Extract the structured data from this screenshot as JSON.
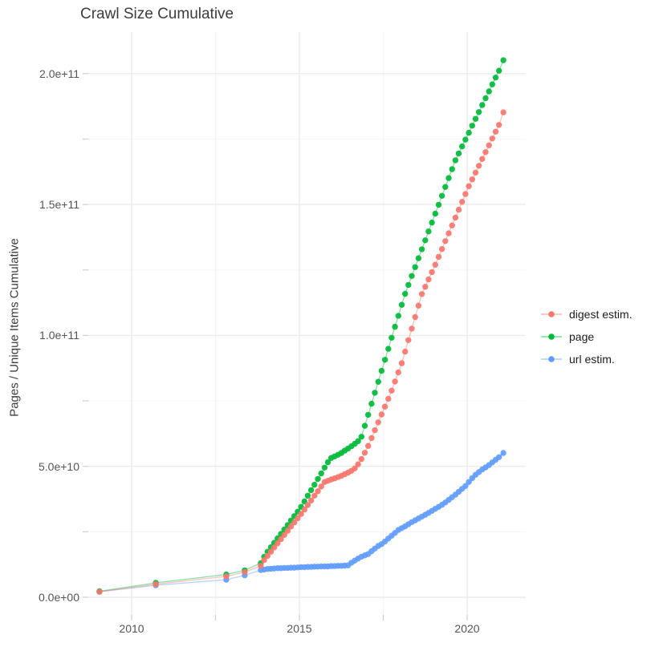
{
  "chart_data": {
    "type": "scatter",
    "title": "Crawl Size Cumulative",
    "xlabel": "",
    "ylabel": "Pages / Unique Items Cumulative",
    "value_unit": "pages, billions (1e9)",
    "xlim": [
      2008.7,
      2021.75
    ],
    "ylim_billions": [
      0,
      215
    ],
    "grid": true,
    "legend_position": "right",
    "x_ticks": [
      {
        "value": 2010,
        "label": "2010"
      },
      {
        "value": 2015,
        "label": "2015"
      },
      {
        "value": 2020,
        "label": "2020"
      }
    ],
    "x_minor_ticks": [
      2012.5,
      2017.5
    ],
    "y_ticks": [
      {
        "value": 0,
        "label": "0.0e+00"
      },
      {
        "value": 50,
        "label": "5.0e+10"
      },
      {
        "value": 100,
        "label": "1.0e+11"
      },
      {
        "value": 150,
        "label": "1.5e+11"
      },
      {
        "value": 200,
        "label": "2.0e+11"
      }
    ],
    "y_minor_ticks": [
      25,
      75,
      125,
      175
    ],
    "colors": {
      "digest": "#F8766D",
      "page": "#00BA38",
      "url": "#619CFF",
      "grid_major": "#ebebeb",
      "grid_minor": "#f5f5f5",
      "tick": "#cfcfcf",
      "tick_text": "#555555",
      "title_text": "#3c3c3c"
    },
    "series": [
      {
        "name": "digest estim.",
        "color": "#F8766D",
        "points": [
          [
            2009.04,
            2.1
          ],
          [
            2010.72,
            5.0
          ],
          [
            2012.82,
            8.0
          ],
          [
            2013.37,
            9.6
          ],
          [
            2013.85,
            12.0
          ],
          [
            2013.95,
            14.2
          ],
          [
            2014.05,
            15.8
          ],
          [
            2014.15,
            17.4
          ],
          [
            2014.25,
            19.0
          ],
          [
            2014.35,
            20.6
          ],
          [
            2014.45,
            22.2
          ],
          [
            2014.55,
            23.8
          ],
          [
            2014.65,
            25.4
          ],
          [
            2014.75,
            27.0
          ],
          [
            2014.85,
            28.6
          ],
          [
            2014.95,
            30.2
          ],
          [
            2015.05,
            31.8
          ],
          [
            2015.15,
            33.5
          ],
          [
            2015.25,
            35.2
          ],
          [
            2015.35,
            37.0
          ],
          [
            2015.45,
            38.8
          ],
          [
            2015.55,
            40.5
          ],
          [
            2015.65,
            42.3
          ],
          [
            2015.75,
            44.0
          ],
          [
            2015.85,
            44.5
          ],
          [
            2015.95,
            45.0
          ],
          [
            2016.05,
            45.4
          ],
          [
            2016.15,
            45.9
          ],
          [
            2016.25,
            46.4
          ],
          [
            2016.35,
            47.0
          ],
          [
            2016.45,
            47.6
          ],
          [
            2016.55,
            48.3
          ],
          [
            2016.65,
            49.2
          ],
          [
            2016.75,
            50.8
          ],
          [
            2016.85,
            52.8
          ],
          [
            2016.95,
            55.2
          ],
          [
            2017.05,
            57.8
          ],
          [
            2017.15,
            60.8
          ],
          [
            2017.25,
            63.8
          ],
          [
            2017.35,
            66.8
          ],
          [
            2017.45,
            69.8
          ],
          [
            2017.55,
            72.8
          ],
          [
            2017.65,
            75.8
          ],
          [
            2017.75,
            78.9
          ],
          [
            2017.85,
            82.4
          ],
          [
            2017.95,
            85.9
          ],
          [
            2018.05,
            89.4
          ],
          [
            2018.15,
            93.8
          ],
          [
            2018.25,
            98.2
          ],
          [
            2018.35,
            102.6
          ],
          [
            2018.45,
            107.0
          ],
          [
            2018.55,
            111.4
          ],
          [
            2018.65,
            115.8
          ],
          [
            2018.75,
            118.6
          ],
          [
            2018.85,
            121.4
          ],
          [
            2018.95,
            124.2
          ],
          [
            2019.05,
            127.0
          ],
          [
            2019.15,
            130.0
          ],
          [
            2019.25,
            133.0
          ],
          [
            2019.35,
            136.0
          ],
          [
            2019.45,
            139.0
          ],
          [
            2019.55,
            142.0
          ],
          [
            2019.65,
            145.0
          ],
          [
            2019.75,
            148.0
          ],
          [
            2019.85,
            151.0
          ],
          [
            2019.95,
            154.0
          ],
          [
            2020.05,
            157.0
          ],
          [
            2020.15,
            159.6
          ],
          [
            2020.25,
            162.2
          ],
          [
            2020.35,
            164.8
          ],
          [
            2020.45,
            167.4
          ],
          [
            2020.55,
            170.0
          ],
          [
            2020.65,
            172.6
          ],
          [
            2020.75,
            175.2
          ],
          [
            2020.85,
            177.8
          ],
          [
            2020.95,
            180.4
          ],
          [
            2021.08,
            185.2
          ]
        ]
      },
      {
        "name": "page",
        "color": "#00BA38",
        "points": [
          [
            2009.04,
            2.3
          ],
          [
            2010.72,
            5.5
          ],
          [
            2012.82,
            8.7
          ],
          [
            2013.37,
            10.3
          ],
          [
            2013.85,
            13.0
          ],
          [
            2013.95,
            15.5
          ],
          [
            2014.05,
            17.4
          ],
          [
            2014.15,
            19.1
          ],
          [
            2014.25,
            20.8
          ],
          [
            2014.35,
            22.5
          ],
          [
            2014.45,
            24.2
          ],
          [
            2014.55,
            25.9
          ],
          [
            2014.65,
            27.6
          ],
          [
            2014.75,
            29.3
          ],
          [
            2014.85,
            31.0
          ],
          [
            2014.95,
            32.7
          ],
          [
            2015.05,
            34.5
          ],
          [
            2015.15,
            36.6
          ],
          [
            2015.25,
            38.8
          ],
          [
            2015.35,
            40.9
          ],
          [
            2015.45,
            43.0
          ],
          [
            2015.55,
            45.2
          ],
          [
            2015.65,
            47.3
          ],
          [
            2015.75,
            49.5
          ],
          [
            2015.85,
            51.6
          ],
          [
            2015.95,
            53.2
          ],
          [
            2016.05,
            53.8
          ],
          [
            2016.15,
            54.4
          ],
          [
            2016.25,
            55.1
          ],
          [
            2016.35,
            56.0
          ],
          [
            2016.45,
            56.8
          ],
          [
            2016.55,
            57.7
          ],
          [
            2016.65,
            58.6
          ],
          [
            2016.75,
            59.6
          ],
          [
            2016.85,
            61.3
          ],
          [
            2016.95,
            65.5
          ],
          [
            2017.05,
            69.7
          ],
          [
            2017.15,
            73.9
          ],
          [
            2017.25,
            78.1
          ],
          [
            2017.35,
            82.3
          ],
          [
            2017.45,
            86.5
          ],
          [
            2017.55,
            90.7
          ],
          [
            2017.65,
            94.9
          ],
          [
            2017.75,
            99.1
          ],
          [
            2017.85,
            103.3
          ],
          [
            2017.95,
            107.5
          ],
          [
            2018.05,
            111.7
          ],
          [
            2018.15,
            115.9
          ],
          [
            2018.25,
            119.3
          ],
          [
            2018.35,
            122.7
          ],
          [
            2018.45,
            126.1
          ],
          [
            2018.55,
            129.5
          ],
          [
            2018.65,
            132.9
          ],
          [
            2018.75,
            136.3
          ],
          [
            2018.85,
            139.7
          ],
          [
            2018.95,
            143.1
          ],
          [
            2019.05,
            146.5
          ],
          [
            2019.15,
            149.9
          ],
          [
            2019.25,
            153.3
          ],
          [
            2019.35,
            156.7
          ],
          [
            2019.45,
            160.1
          ],
          [
            2019.55,
            163.5
          ],
          [
            2019.65,
            166.9
          ],
          [
            2019.75,
            169.5
          ],
          [
            2019.85,
            172.2
          ],
          [
            2019.95,
            174.8
          ],
          [
            2020.05,
            177.4
          ],
          [
            2020.15,
            180.1
          ],
          [
            2020.25,
            182.7
          ],
          [
            2020.35,
            185.3
          ],
          [
            2020.45,
            188.0
          ],
          [
            2020.55,
            190.6
          ],
          [
            2020.65,
            193.2
          ],
          [
            2020.75,
            195.9
          ],
          [
            2020.85,
            198.5
          ],
          [
            2020.95,
            201.1
          ],
          [
            2021.08,
            205.1
          ]
        ]
      },
      {
        "name": "url estim.",
        "color": "#619CFF",
        "points": [
          [
            2009.04,
            2.1
          ],
          [
            2010.72,
            4.6
          ],
          [
            2012.82,
            6.7
          ],
          [
            2013.37,
            8.4
          ],
          [
            2013.85,
            10.4
          ],
          [
            2013.95,
            10.6
          ],
          [
            2014.05,
            10.8
          ],
          [
            2014.15,
            10.9
          ],
          [
            2014.25,
            11.0
          ],
          [
            2014.35,
            11.1
          ],
          [
            2014.45,
            11.1
          ],
          [
            2014.55,
            11.2
          ],
          [
            2014.65,
            11.2
          ],
          [
            2014.75,
            11.3
          ],
          [
            2014.85,
            11.3
          ],
          [
            2014.95,
            11.4
          ],
          [
            2015.05,
            11.5
          ],
          [
            2015.15,
            11.5
          ],
          [
            2015.25,
            11.6
          ],
          [
            2015.35,
            11.6
          ],
          [
            2015.45,
            11.7
          ],
          [
            2015.55,
            11.7
          ],
          [
            2015.65,
            11.8
          ],
          [
            2015.75,
            11.8
          ],
          [
            2015.85,
            11.8
          ],
          [
            2015.95,
            11.9
          ],
          [
            2016.05,
            11.9
          ],
          [
            2016.15,
            12.0
          ],
          [
            2016.25,
            12.0
          ],
          [
            2016.35,
            12.1
          ],
          [
            2016.45,
            12.2
          ],
          [
            2016.55,
            13.2
          ],
          [
            2016.65,
            14.0
          ],
          [
            2016.75,
            14.8
          ],
          [
            2016.85,
            15.5
          ],
          [
            2016.95,
            16.0
          ],
          [
            2017.05,
            16.5
          ],
          [
            2017.15,
            17.6
          ],
          [
            2017.25,
            18.6
          ],
          [
            2017.35,
            19.6
          ],
          [
            2017.45,
            20.3
          ],
          [
            2017.55,
            21.3
          ],
          [
            2017.65,
            22.4
          ],
          [
            2017.75,
            23.5
          ],
          [
            2017.85,
            24.6
          ],
          [
            2017.95,
            25.7
          ],
          [
            2018.05,
            26.4
          ],
          [
            2018.15,
            27.1
          ],
          [
            2018.25,
            27.9
          ],
          [
            2018.35,
            28.7
          ],
          [
            2018.45,
            29.4
          ],
          [
            2018.55,
            30.1
          ],
          [
            2018.65,
            30.8
          ],
          [
            2018.75,
            31.5
          ],
          [
            2018.85,
            32.2
          ],
          [
            2018.95,
            33.0
          ],
          [
            2019.05,
            33.8
          ],
          [
            2019.15,
            34.5
          ],
          [
            2019.25,
            35.3
          ],
          [
            2019.35,
            36.2
          ],
          [
            2019.45,
            37.2
          ],
          [
            2019.55,
            38.2
          ],
          [
            2019.65,
            39.2
          ],
          [
            2019.75,
            40.3
          ],
          [
            2019.85,
            41.4
          ],
          [
            2019.95,
            42.5
          ],
          [
            2020.05,
            44.0
          ],
          [
            2020.15,
            45.5
          ],
          [
            2020.25,
            46.8
          ],
          [
            2020.35,
            47.8
          ],
          [
            2020.45,
            48.8
          ],
          [
            2020.55,
            49.6
          ],
          [
            2020.65,
            50.5
          ],
          [
            2020.75,
            51.5
          ],
          [
            2020.85,
            52.5
          ],
          [
            2020.95,
            53.5
          ],
          [
            2021.08,
            55.1
          ]
        ]
      }
    ]
  }
}
